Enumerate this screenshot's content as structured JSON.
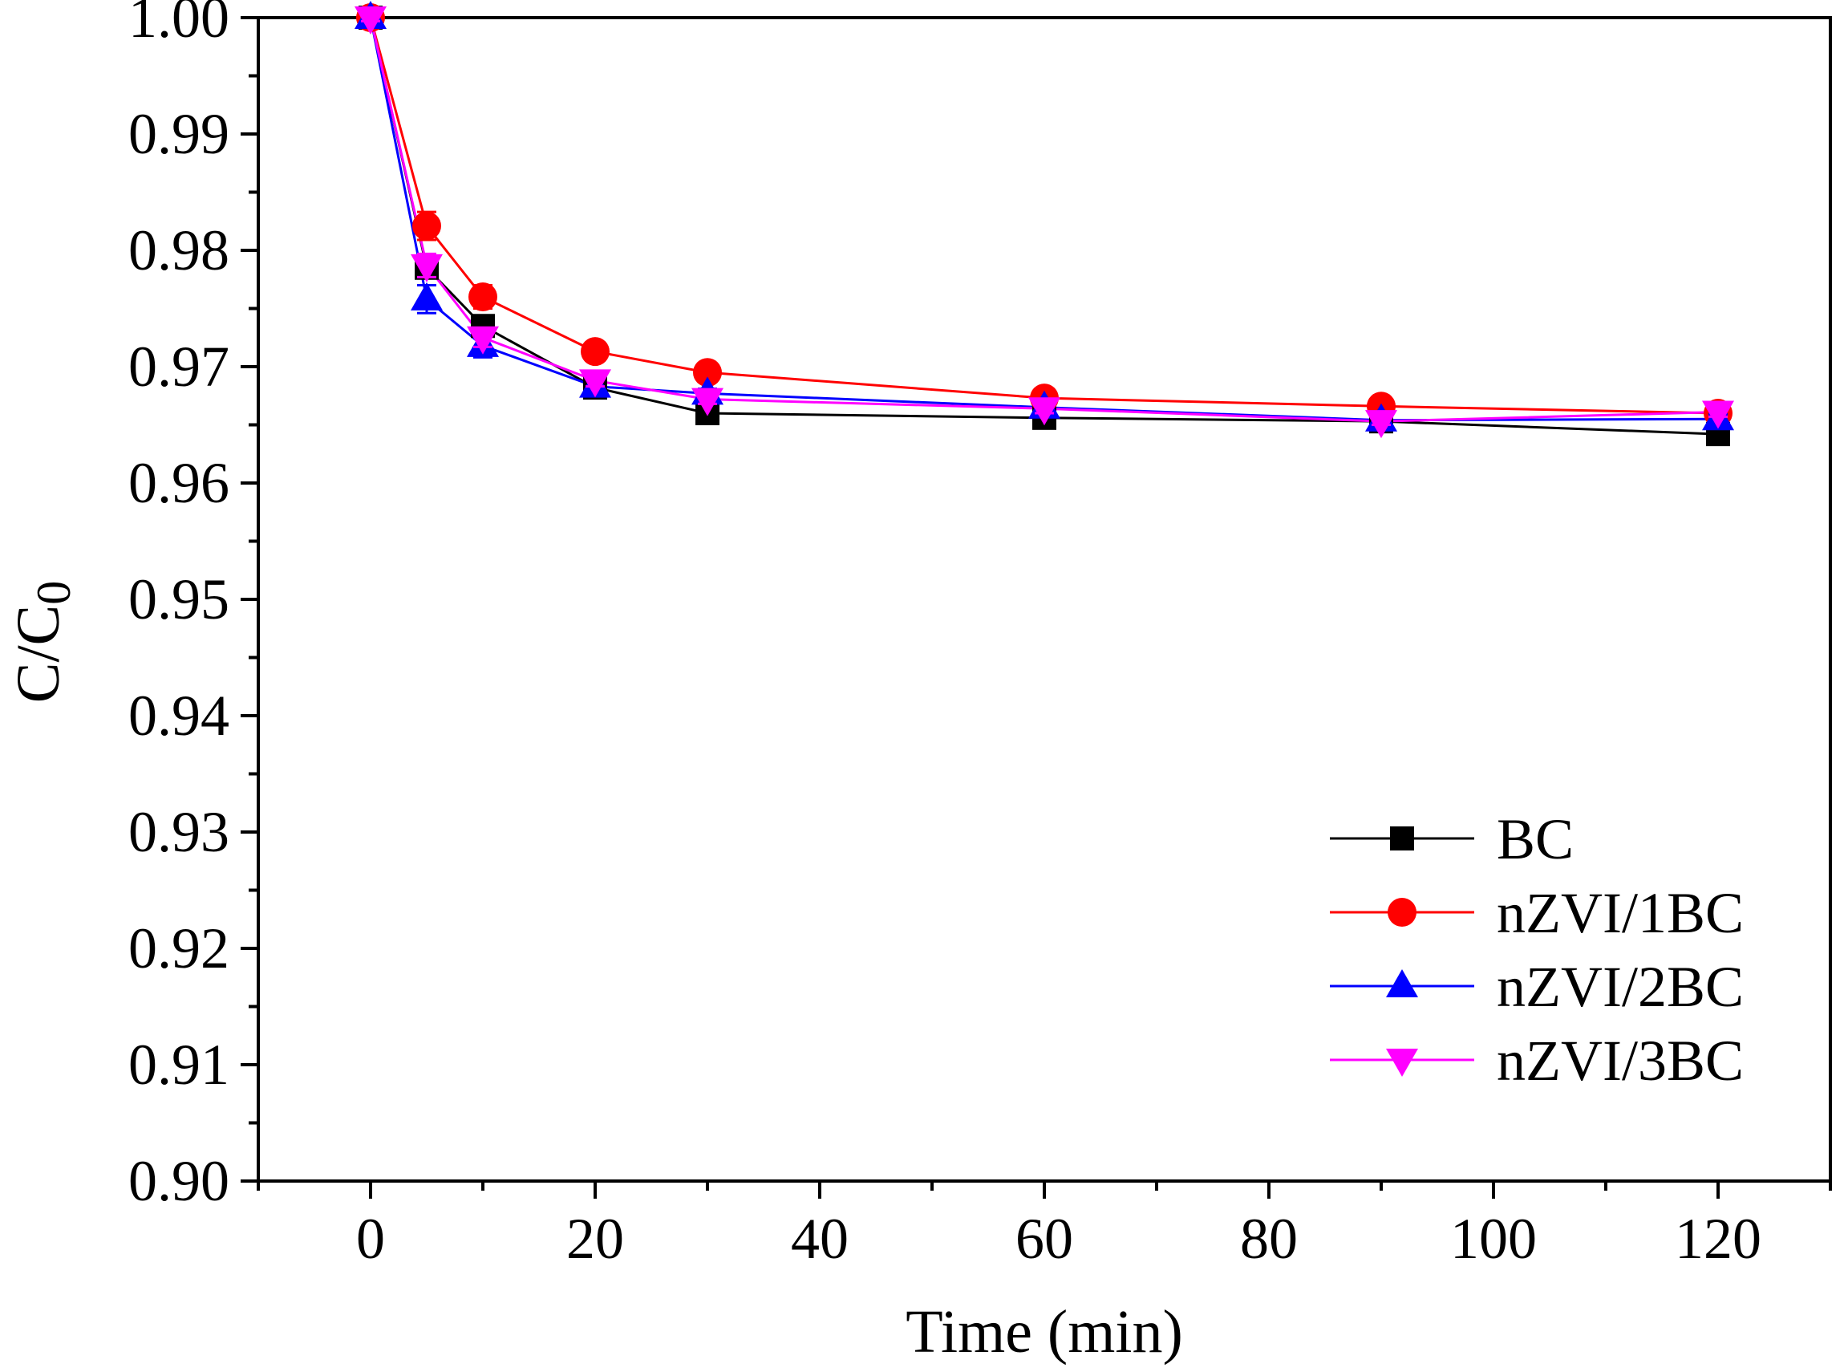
{
  "chart_data": {
    "type": "line",
    "title": "",
    "xlabel": "Time (min)",
    "ylabel": {
      "main": "C/C",
      "subscript": "0"
    },
    "xlim": [
      -10,
      130
    ],
    "ylim": [
      0.9,
      1.0
    ],
    "x_ticks": [
      0,
      20,
      40,
      60,
      80,
      100,
      120
    ],
    "x_tick_labels": [
      "0",
      "20",
      "40",
      "60",
      "80",
      "100",
      "120"
    ],
    "y_ticks": [
      0.9,
      0.91,
      0.92,
      0.93,
      0.94,
      0.95,
      0.96,
      0.97,
      0.98,
      0.99,
      1.0
    ],
    "y_tick_labels": [
      "0.90",
      "0.91",
      "0.92",
      "0.93",
      "0.94",
      "0.95",
      "0.96",
      "0.97",
      "0.98",
      "0.99",
      "1.00"
    ],
    "grid": false,
    "legend_position": "bottom-right",
    "x": [
      0,
      5,
      10,
      20,
      30,
      60,
      90,
      120
    ],
    "series": [
      {
        "name": "BC",
        "color": "#000000",
        "marker": "square",
        "values": [
          1.0,
          0.9785,
          0.9735,
          0.9682,
          0.966,
          0.9656,
          0.9653,
          0.9642
        ],
        "errors": [
          0.0003,
          0.0008,
          0.0008,
          0.0006,
          0.0004,
          0.0004,
          0.0003,
          0.0003
        ]
      },
      {
        "name": "nZVI/1BC",
        "color": "#ff0000",
        "marker": "circle",
        "values": [
          1.0,
          0.9821,
          0.976,
          0.9713,
          0.9695,
          0.9673,
          0.9666,
          0.966
        ],
        "errors": [
          0.0003,
          0.0012,
          0.001,
          0.0006,
          0.0008,
          0.0005,
          0.0005,
          0.0004
        ]
      },
      {
        "name": "nZVI/2BC",
        "color": "#0000ff",
        "marker": "triangle-up",
        "values": [
          1.0,
          0.9758,
          0.9718,
          0.9683,
          0.9677,
          0.9665,
          0.9654,
          0.9655
        ],
        "errors": [
          0.0003,
          0.0012,
          0.001,
          0.0006,
          0.0004,
          0.0004,
          0.0003,
          0.0004
        ]
      },
      {
        "name": "nZVI/3BC",
        "color": "#ff00ff",
        "marker": "triangle-down",
        "values": [
          1.0,
          0.9787,
          0.9725,
          0.9688,
          0.9672,
          0.9664,
          0.9653,
          0.9661
        ],
        "errors": [
          0.0003,
          0.001,
          0.0008,
          0.0005,
          0.0004,
          0.0004,
          0.0003,
          0.0004
        ]
      }
    ]
  }
}
